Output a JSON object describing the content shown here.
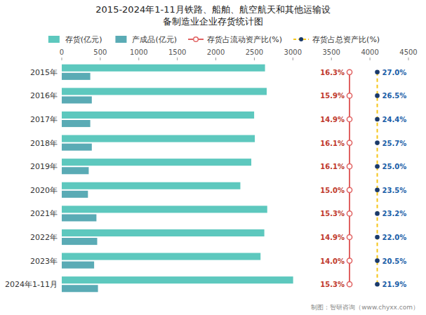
{
  "chart_data": {
    "type": "bar",
    "orientation": "horizontal",
    "title": "2015-2024年1-11月铁路、船舶、航空航天和其他运输设",
    "subtitle": "备制造业企业存货统计图",
    "categories": [
      "2015年",
      "2016年",
      "2017年",
      "2018年",
      "2019年",
      "2020年",
      "2021年",
      "2022年",
      "2023年",
      "2024年1-11月"
    ],
    "series": [
      {
        "name": "存货(亿元)",
        "color": "#5DC8BE",
        "values": [
          2638,
          2660,
          2497,
          2506,
          2460,
          2318,
          2667,
          2629,
          2580,
          3003
        ]
      },
      {
        "name": "产成品(亿元)",
        "color": "#5AABB5",
        "values": [
          370,
          390,
          370,
          390,
          350,
          340,
          450,
          460,
          420,
          470
        ]
      },
      {
        "name": "存货占流动资产比(%)",
        "type": "line",
        "color": "#E06060",
        "marker": "open-circle",
        "line_style": "solid",
        "data_labels": true,
        "values": [
          16.3,
          15.9,
          14.9,
          16.1,
          16.1,
          15.0,
          15.3,
          14.9,
          14.0,
          15.3
        ],
        "value_labels": [
          "16.3%",
          "15.9%",
          "14.9%",
          "16.1%",
          "16.1%",
          "15.0%",
          "15.3%",
          "14.9%",
          "14.0%",
          "15.3%"
        ]
      },
      {
        "name": "存货占总资产比(%)",
        "type": "line",
        "color": "#F5C518",
        "marker": "filled-circle",
        "line_style": "dashed",
        "data_labels": true,
        "values": [
          27.0,
          26.5,
          24.4,
          25.7,
          25.0,
          23.5,
          23.2,
          22.0,
          20.5,
          21.9
        ],
        "value_labels": [
          "27.0%",
          "26.5%",
          "24.4%",
          "25.7%",
          "25.0%",
          "23.5%",
          "23.2%",
          "22.0%",
          "20.5%",
          "21.9%"
        ]
      }
    ],
    "xlim": [
      0,
      4500
    ],
    "xticks": [
      0,
      500,
      1000,
      1500,
      2000,
      2500,
      3000,
      3500,
      4000,
      4500
    ],
    "grid": false,
    "legend": "top",
    "annotations": [
      "制图：智研咨询（www.chyxx.com）"
    ]
  }
}
